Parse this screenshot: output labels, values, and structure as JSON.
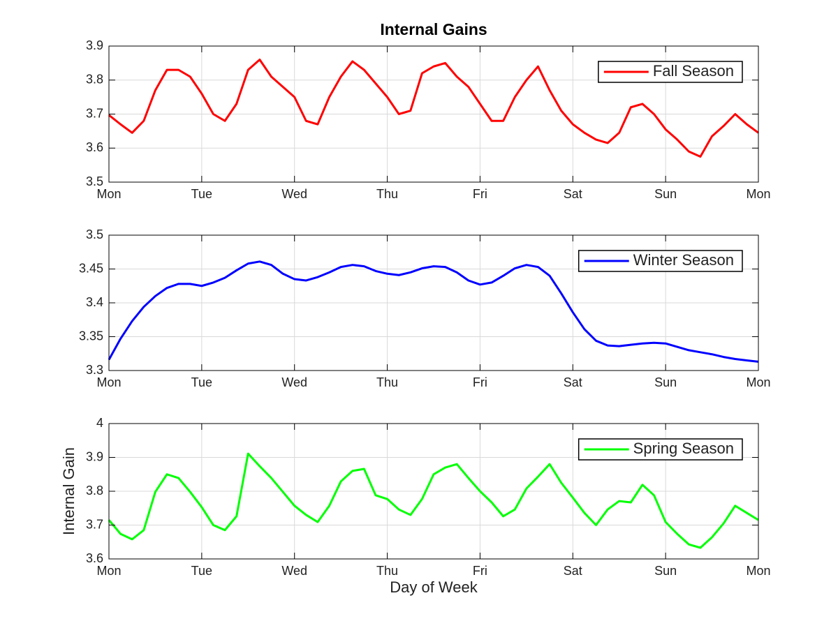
{
  "chart_data": [
    {
      "type": "line",
      "title": "Internal Gains",
      "x": [
        0,
        0.125,
        0.25,
        0.375,
        0.5,
        0.625,
        0.75,
        0.875,
        1,
        1.125,
        1.25,
        1.375,
        1.5,
        1.625,
        1.75,
        1.875,
        2,
        2.125,
        2.25,
        2.375,
        2.5,
        2.625,
        2.75,
        2.875,
        3,
        3.125,
        3.25,
        3.375,
        3.5,
        3.625,
        3.75,
        3.875,
        4,
        4.125,
        4.25,
        4.375,
        4.5,
        4.625,
        4.75,
        4.875,
        5,
        5.125,
        5.25,
        5.375,
        5.5,
        5.625,
        5.75,
        5.875,
        6,
        6.125,
        6.25,
        6.375,
        6.5,
        6.625,
        6.75,
        6.875,
        7
      ],
      "xlim": [
        0,
        7
      ],
      "xticks": [
        {
          "value": 0,
          "label": "Mon"
        },
        {
          "value": 1,
          "label": "Tue"
        },
        {
          "value": 2,
          "label": "Wed"
        },
        {
          "value": 3,
          "label": "Thu"
        },
        {
          "value": 4,
          "label": "Fri"
        },
        {
          "value": 5,
          "label": "Sat"
        },
        {
          "value": 6,
          "label": "Sun"
        },
        {
          "value": 7,
          "label": "Mon"
        }
      ],
      "ylim": [
        3.5,
        3.9
      ],
      "yticks": [
        3.5,
        3.6,
        3.7,
        3.8,
        3.9
      ],
      "grid": true,
      "legend": "upper right",
      "series": [
        {
          "name": "Fall Season",
          "color": "#ff0000",
          "values": [
            3.697,
            3.67,
            3.645,
            3.68,
            3.77,
            3.83,
            3.83,
            3.81,
            3.76,
            3.7,
            3.68,
            3.73,
            3.83,
            3.86,
            3.81,
            3.78,
            3.75,
            3.68,
            3.67,
            3.75,
            3.81,
            3.855,
            3.83,
            3.79,
            3.75,
            3.7,
            3.71,
            3.82,
            3.84,
            3.85,
            3.81,
            3.78,
            3.73,
            3.68,
            3.68,
            3.75,
            3.8,
            3.84,
            3.77,
            3.71,
            3.67,
            3.645,
            3.625,
            3.615,
            3.645,
            3.72,
            3.73,
            3.7,
            3.655,
            3.625,
            3.59,
            3.575,
            3.635,
            3.665,
            3.7,
            3.67,
            3.645
          ]
        }
      ]
    },
    {
      "type": "line",
      "x": [
        0,
        0.125,
        0.25,
        0.375,
        0.5,
        0.625,
        0.75,
        0.875,
        1,
        1.125,
        1.25,
        1.375,
        1.5,
        1.625,
        1.75,
        1.875,
        2,
        2.125,
        2.25,
        2.375,
        2.5,
        2.625,
        2.75,
        2.875,
        3,
        3.125,
        3.25,
        3.375,
        3.5,
        3.625,
        3.75,
        3.875,
        4,
        4.125,
        4.25,
        4.375,
        4.5,
        4.625,
        4.75,
        4.875,
        5,
        5.125,
        5.25,
        5.375,
        5.5,
        5.625,
        5.75,
        5.875,
        6,
        6.125,
        6.25,
        6.375,
        6.5,
        6.625,
        6.75,
        6.875,
        7
      ],
      "xlim": [
        0,
        7
      ],
      "xticks": [
        {
          "value": 0,
          "label": "Mon"
        },
        {
          "value": 1,
          "label": "Tue"
        },
        {
          "value": 2,
          "label": "Wed"
        },
        {
          "value": 3,
          "label": "Thu"
        },
        {
          "value": 4,
          "label": "Fri"
        },
        {
          "value": 5,
          "label": "Sat"
        },
        {
          "value": 6,
          "label": "Sun"
        },
        {
          "value": 7,
          "label": "Mon"
        }
      ],
      "ylim": [
        3.3,
        3.5
      ],
      "yticks": [
        3.3,
        3.35,
        3.4,
        3.45,
        3.5
      ],
      "grid": true,
      "legend": "upper right",
      "series": [
        {
          "name": "Winter Season",
          "color": "#0000ff",
          "values": [
            3.316,
            3.347,
            3.373,
            3.394,
            3.41,
            3.422,
            3.428,
            3.428,
            3.425,
            3.43,
            3.437,
            3.448,
            3.458,
            3.461,
            3.456,
            3.443,
            3.435,
            3.433,
            3.438,
            3.445,
            3.453,
            3.456,
            3.454,
            3.447,
            3.443,
            3.441,
            3.445,
            3.451,
            3.454,
            3.453,
            3.445,
            3.433,
            3.427,
            3.43,
            3.44,
            3.451,
            3.456,
            3.453,
            3.44,
            3.414,
            3.386,
            3.361,
            3.344,
            3.337,
            3.336,
            3.338,
            3.34,
            3.341,
            3.34,
            3.335,
            3.33,
            3.327,
            3.324,
            3.32,
            3.317,
            3.315,
            3.313
          ]
        }
      ]
    },
    {
      "type": "line",
      "xlabel": "Day of Week",
      "ylabel": "Internal Gain",
      "x": [
        0,
        0.125,
        0.25,
        0.375,
        0.5,
        0.625,
        0.75,
        0.875,
        1,
        1.125,
        1.25,
        1.375,
        1.5,
        1.625,
        1.75,
        1.875,
        2,
        2.125,
        2.25,
        2.375,
        2.5,
        2.625,
        2.75,
        2.875,
        3,
        3.125,
        3.25,
        3.375,
        3.5,
        3.625,
        3.75,
        3.875,
        4,
        4.125,
        4.25,
        4.375,
        4.5,
        4.625,
        4.75,
        4.875,
        5,
        5.125,
        5.25,
        5.375,
        5.5,
        5.625,
        5.75,
        5.875,
        6,
        6.125,
        6.25,
        6.375,
        6.5,
        6.625,
        6.75,
        6.875,
        7
      ],
      "xlim": [
        0,
        7
      ],
      "xticks": [
        {
          "value": 0,
          "label": "Mon"
        },
        {
          "value": 1,
          "label": "Tue"
        },
        {
          "value": 2,
          "label": "Wed"
        },
        {
          "value": 3,
          "label": "Thu"
        },
        {
          "value": 4,
          "label": "Fri"
        },
        {
          "value": 5,
          "label": "Sat"
        },
        {
          "value": 6,
          "label": "Sun"
        },
        {
          "value": 7,
          "label": "Mon"
        }
      ],
      "ylim": [
        3.6,
        4
      ],
      "yticks": [
        3.6,
        3.7,
        3.8,
        3.9,
        4
      ],
      "grid": true,
      "legend": "upper right",
      "series": [
        {
          "name": "Spring Season",
          "color": "#00ff00",
          "values": [
            3.715,
            3.674,
            3.658,
            3.685,
            3.798,
            3.85,
            3.839,
            3.798,
            3.753,
            3.7,
            3.685,
            3.726,
            3.911,
            3.874,
            3.839,
            3.798,
            3.757,
            3.73,
            3.709,
            3.757,
            3.829,
            3.86,
            3.866,
            3.788,
            3.777,
            3.746,
            3.73,
            3.777,
            3.85,
            3.87,
            3.88,
            3.839,
            3.8,
            3.767,
            3.726,
            3.746,
            3.808,
            3.843,
            3.88,
            3.825,
            3.781,
            3.736,
            3.7,
            3.746,
            3.771,
            3.767,
            3.819,
            3.788,
            3.709,
            3.674,
            3.643,
            3.633,
            3.664,
            3.705,
            3.757,
            3.736,
            3.715
          ]
        }
      ]
    }
  ]
}
